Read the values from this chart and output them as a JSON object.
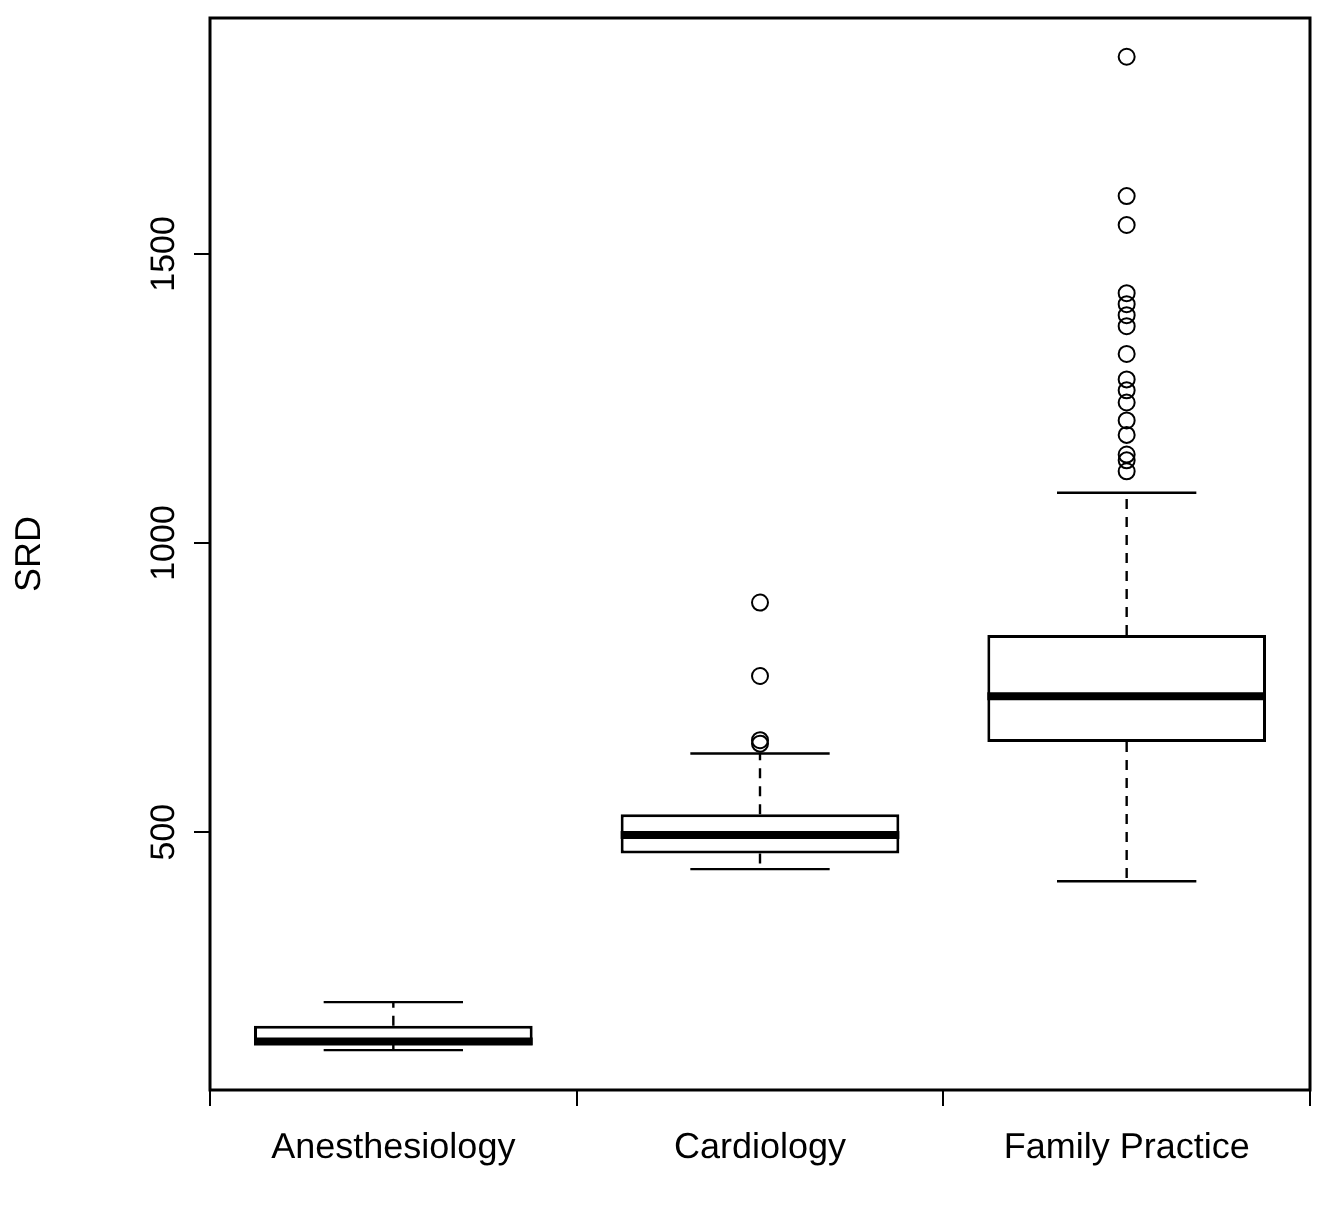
{
  "chart_data": {
    "type": "box",
    "ylabel": "SRD",
    "categories": [
      "Anesthesiology",
      "Cardiology",
      "Family Practice"
    ],
    "boxes": [
      {
        "low": 123,
        "q1": 132,
        "median": 138,
        "q3": 165,
        "high": 206
      },
      {
        "low": 436,
        "q1": 463,
        "median": 495,
        "q3": 531,
        "high": 636,
        "outliers": [
          897,
          770,
          659,
          653
        ]
      },
      {
        "low": 415,
        "q1": 656,
        "median": 735,
        "q3": 841,
        "high": 1087,
        "outliers": [
          1841,
          1600,
          1550,
          1432,
          1413,
          1394,
          1375,
          1327,
          1283,
          1264,
          1243,
          1212,
          1187,
          1153,
          1143,
          1124
        ]
      }
    ],
    "color": "#000000",
    "ylim": [
      54,
      1908
    ],
    "yticks": [
      500,
      1000,
      1500
    ],
    "grid": false,
    "legend": false,
    "marker": "circle"
  }
}
